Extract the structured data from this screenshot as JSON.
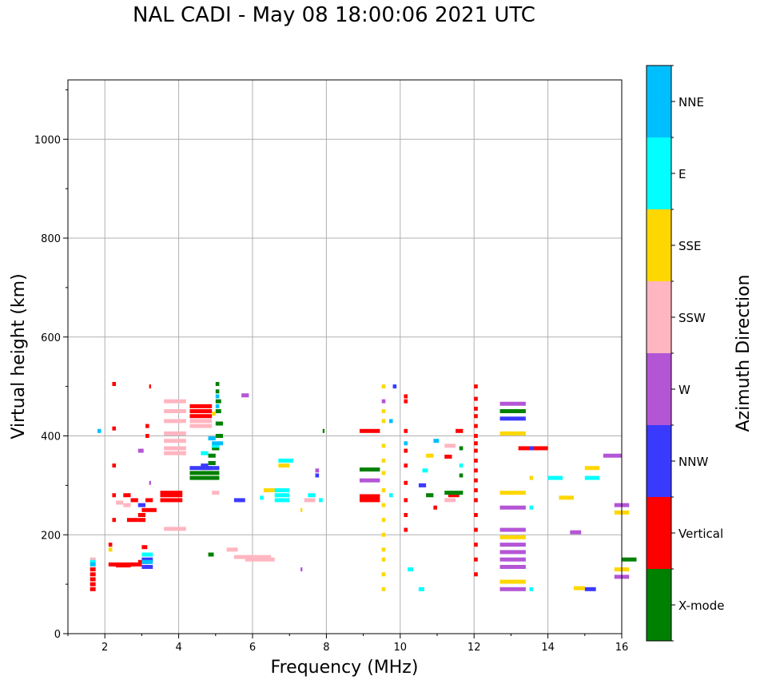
{
  "chart_data": {
    "type": "scatter",
    "title": "NAL CADI - May 08 18:00:06 2021 UTC",
    "xlabel": "Frequency (MHz)",
    "ylabel": "Virtual height (km)",
    "xlim": [
      1,
      16
    ],
    "ylim": [
      0,
      1120
    ],
    "xticks": [
      2,
      4,
      6,
      8,
      10,
      12,
      14,
      16
    ],
    "yticks": [
      0,
      200,
      400,
      600,
      800,
      1000
    ],
    "grid": true,
    "colorbar": {
      "label": "Azimuth Direction",
      "categories": [
        {
          "name": "X-mode",
          "color": "#008000"
        },
        {
          "name": "Vertical",
          "color": "#ff0000"
        },
        {
          "name": "NNW",
          "color": "#3a3aff"
        },
        {
          "name": "W",
          "color": "#b455d6"
        },
        {
          "name": "SSW",
          "color": "#ffb6c1"
        },
        {
          "name": "SSE",
          "color": "#ffd700"
        },
        {
          "name": "E",
          "color": "#00ffff"
        },
        {
          "name": "NNE",
          "color": "#00bfff"
        }
      ]
    },
    "series": [
      {
        "name": "Vertical",
        "points": [
          [
            1.6,
            90,
            0.15
          ],
          [
            1.6,
            100,
            0.15
          ],
          [
            1.6,
            110,
            0.15
          ],
          [
            1.6,
            120,
            0.15
          ],
          [
            1.6,
            130,
            0.15
          ],
          [
            2.1,
            140,
            0.4
          ],
          [
            2.3,
            138,
            0.4
          ],
          [
            2.5,
            140,
            0.3
          ],
          [
            2.7,
            140,
            0.3
          ],
          [
            2.9,
            145,
            0.3
          ],
          [
            2.1,
            180,
            0.1
          ],
          [
            2.2,
            230,
            0.1
          ],
          [
            2.6,
            230,
            0.3
          ],
          [
            2.9,
            230,
            0.2
          ],
          [
            2.9,
            240,
            0.2
          ],
          [
            3.0,
            250,
            0.4
          ],
          [
            2.2,
            280,
            0.1
          ],
          [
            2.5,
            280,
            0.2
          ],
          [
            2.7,
            270,
            0.2
          ],
          [
            3.1,
            270,
            0.2
          ],
          [
            3.1,
            400,
            0.1
          ],
          [
            3.1,
            420,
            0.1
          ],
          [
            2.2,
            340,
            0.1
          ],
          [
            2.2,
            415,
            0.1
          ],
          [
            2.2,
            505,
            0.1
          ],
          [
            3.2,
            500,
            0.05
          ],
          [
            3.0,
            175,
            0.15
          ],
          [
            3.5,
            270,
            0.6
          ],
          [
            3.5,
            280,
            0.6
          ],
          [
            3.5,
            285,
            0.6
          ],
          [
            4.3,
            440,
            0.6
          ],
          [
            4.3,
            450,
            0.6
          ],
          [
            4.3,
            460,
            0.6
          ],
          [
            8.9,
            410,
            0.55
          ],
          [
            8.9,
            270,
            0.55
          ],
          [
            8.9,
            278,
            0.55
          ],
          [
            10.1,
            480,
            0.1
          ],
          [
            10.1,
            470,
            0.1
          ],
          [
            10.1,
            410,
            0.1
          ],
          [
            10.1,
            370,
            0.1
          ],
          [
            10.1,
            340,
            0.1
          ],
          [
            10.1,
            305,
            0.1
          ],
          [
            10.1,
            270,
            0.1
          ],
          [
            10.1,
            240,
            0.1
          ],
          [
            10.1,
            210,
            0.1
          ],
          [
            11.2,
            358,
            0.2
          ],
          [
            11.5,
            410,
            0.2
          ],
          [
            11.3,
            280,
            0.3
          ],
          [
            10.9,
            255,
            0.1
          ],
          [
            12.0,
            120,
            0.1
          ],
          [
            12.0,
            150,
            0.1
          ],
          [
            12.0,
            180,
            0.1
          ],
          [
            12.0,
            210,
            0.1
          ],
          [
            12.0,
            240,
            0.1
          ],
          [
            12.0,
            270,
            0.1
          ],
          [
            12.0,
            290,
            0.1
          ],
          [
            12.0,
            310,
            0.1
          ],
          [
            12.0,
            330,
            0.1
          ],
          [
            12.0,
            350,
            0.1
          ],
          [
            12.0,
            370,
            0.1
          ],
          [
            12.0,
            385,
            0.1
          ],
          [
            12.0,
            400,
            0.1
          ],
          [
            12.0,
            420,
            0.1
          ],
          [
            12.0,
            440,
            0.1
          ],
          [
            12.0,
            455,
            0.1
          ],
          [
            12.0,
            475,
            0.1
          ],
          [
            12.0,
            500,
            0.1
          ],
          [
            13.2,
            375,
            0.8
          ]
        ]
      },
      {
        "name": "X-mode",
        "points": [
          [
            4.3,
            315,
            0.8
          ],
          [
            4.3,
            325,
            0.8
          ],
          [
            4.6,
            335,
            0.3
          ],
          [
            4.8,
            345,
            0.2
          ],
          [
            4.8,
            360,
            0.2
          ],
          [
            4.9,
            375,
            0.2
          ],
          [
            5.0,
            400,
            0.2
          ],
          [
            5.0,
            425,
            0.2
          ],
          [
            5.0,
            450,
            0.15
          ],
          [
            5.0,
            470,
            0.15
          ],
          [
            5.0,
            490,
            0.1
          ],
          [
            5.0,
            505,
            0.1
          ],
          [
            8.9,
            332,
            0.55
          ],
          [
            11.2,
            285,
            0.5
          ],
          [
            10.7,
            280,
            0.2
          ],
          [
            12.7,
            450,
            0.7
          ],
          [
            16.0,
            150,
            0.4
          ],
          [
            4.8,
            160,
            0.15
          ],
          [
            11.6,
            375,
            0.1
          ],
          [
            11.6,
            320,
            0.1
          ],
          [
            7.9,
            410,
            0.05
          ]
        ]
      },
      {
        "name": "NNW",
        "points": [
          [
            4.3,
            335,
            0.8
          ],
          [
            4.6,
            340,
            0.2
          ],
          [
            5.5,
            270,
            0.3
          ],
          [
            7.7,
            320,
            0.1
          ],
          [
            10.5,
            300,
            0.2
          ],
          [
            13.5,
            375,
            0.1
          ],
          [
            15.0,
            90,
            0.3
          ],
          [
            9.8,
            500,
            0.1
          ],
          [
            3.0,
            150,
            0.3
          ],
          [
            3.0,
            135,
            0.3
          ],
          [
            2.9,
            260,
            0.2
          ],
          [
            12.7,
            435,
            0.7
          ]
        ]
      },
      {
        "name": "W",
        "points": [
          [
            12.7,
            465,
            0.7
          ],
          [
            12.7,
            255,
            0.7
          ],
          [
            12.7,
            210,
            0.7
          ],
          [
            12.7,
            180,
            0.7
          ],
          [
            12.7,
            165,
            0.7
          ],
          [
            12.7,
            150,
            0.7
          ],
          [
            12.7,
            135,
            0.7
          ],
          [
            12.7,
            90,
            0.7
          ],
          [
            15.5,
            360,
            0.5
          ],
          [
            15.8,
            260,
            0.4
          ],
          [
            15.8,
            115,
            0.4
          ],
          [
            14.6,
            205,
            0.3
          ],
          [
            5.7,
            482,
            0.2
          ],
          [
            8.9,
            310,
            0.55
          ],
          [
            9.5,
            470,
            0.1
          ],
          [
            7.3,
            130,
            0.05
          ],
          [
            2.9,
            370,
            0.15
          ],
          [
            3.2,
            305,
            0.05
          ],
          [
            7.7,
            330,
            0.1
          ]
        ]
      },
      {
        "name": "SSW",
        "points": [
          [
            3.6,
            470,
            0.6
          ],
          [
            3.6,
            450,
            0.6
          ],
          [
            3.6,
            430,
            0.6
          ],
          [
            3.6,
            405,
            0.6
          ],
          [
            3.6,
            390,
            0.6
          ],
          [
            3.6,
            375,
            0.6
          ],
          [
            3.6,
            365,
            0.6
          ],
          [
            3.6,
            212,
            0.6
          ],
          [
            4.3,
            420,
            0.6
          ],
          [
            4.3,
            430,
            0.6
          ],
          [
            5.5,
            155,
            1.0
          ],
          [
            5.8,
            150,
            0.8
          ],
          [
            5.3,
            170,
            0.3
          ],
          [
            4.9,
            285,
            0.2
          ],
          [
            2.3,
            265,
            0.2
          ],
          [
            2.5,
            260,
            0.2
          ],
          [
            1.6,
            150,
            0.15
          ],
          [
            7.4,
            270,
            0.3
          ],
          [
            11.2,
            270,
            0.3
          ],
          [
            11.2,
            380,
            0.3
          ]
        ]
      },
      {
        "name": "SSE",
        "points": [
          [
            6.3,
            290,
            0.4
          ],
          [
            6.7,
            340,
            0.3
          ],
          [
            9.5,
            500,
            0.1
          ],
          [
            9.5,
            450,
            0.1
          ],
          [
            9.5,
            430,
            0.1
          ],
          [
            9.5,
            380,
            0.1
          ],
          [
            9.5,
            350,
            0.1
          ],
          [
            9.5,
            325,
            0.1
          ],
          [
            9.5,
            290,
            0.1
          ],
          [
            9.5,
            260,
            0.1
          ],
          [
            9.5,
            230,
            0.1
          ],
          [
            9.5,
            200,
            0.1
          ],
          [
            9.5,
            170,
            0.1
          ],
          [
            9.5,
            150,
            0.1
          ],
          [
            9.5,
            120,
            0.1
          ],
          [
            9.5,
            90,
            0.1
          ],
          [
            12.7,
            405,
            0.7
          ],
          [
            12.7,
            285,
            0.7
          ],
          [
            12.7,
            195,
            0.7
          ],
          [
            12.7,
            105,
            0.7
          ],
          [
            13.5,
            315,
            0.1
          ],
          [
            14.3,
            275,
            0.4
          ],
          [
            14.7,
            92,
            0.3
          ],
          [
            15.0,
            335,
            0.4
          ],
          [
            15.8,
            245,
            0.4
          ],
          [
            15.8,
            130,
            0.4
          ],
          [
            4.9,
            445,
            0.1
          ],
          [
            2.1,
            170,
            0.1
          ],
          [
            10.7,
            360,
            0.2
          ],
          [
            7.3,
            250,
            0.05
          ]
        ]
      },
      {
        "name": "E",
        "points": [
          [
            6.6,
            280,
            0.4
          ],
          [
            6.6,
            270,
            0.4
          ],
          [
            6.6,
            290,
            0.4
          ],
          [
            6.7,
            350,
            0.4
          ],
          [
            7.5,
            280,
            0.2
          ],
          [
            7.8,
            270,
            0.1
          ],
          [
            13.5,
            255,
            0.1
          ],
          [
            13.5,
            90,
            0.1
          ],
          [
            14.0,
            315,
            0.4
          ],
          [
            15.0,
            315,
            0.4
          ],
          [
            10.5,
            90,
            0.15
          ],
          [
            10.2,
            130,
            0.15
          ],
          [
            9.7,
            280,
            0.1
          ],
          [
            10.6,
            330,
            0.15
          ],
          [
            11.6,
            340,
            0.1
          ],
          [
            1.6,
            145,
            0.15
          ],
          [
            3.0,
            160,
            0.3
          ],
          [
            4.6,
            365,
            0.2
          ],
          [
            4.9,
            380,
            0.2
          ],
          [
            6.2,
            275,
            0.1
          ]
        ]
      },
      {
        "name": "NNE",
        "points": [
          [
            1.8,
            410,
            0.1
          ],
          [
            4.8,
            395,
            0.2
          ],
          [
            4.9,
            385,
            0.3
          ],
          [
            5.0,
            480,
            0.1
          ],
          [
            5.0,
            460,
            0.1
          ],
          [
            10.1,
            385,
            0.1
          ],
          [
            10.9,
            390,
            0.15
          ],
          [
            9.7,
            430,
            0.1
          ],
          [
            1.6,
            140,
            0.15
          ],
          [
            3.0,
            145,
            0.3
          ]
        ]
      }
    ]
  }
}
